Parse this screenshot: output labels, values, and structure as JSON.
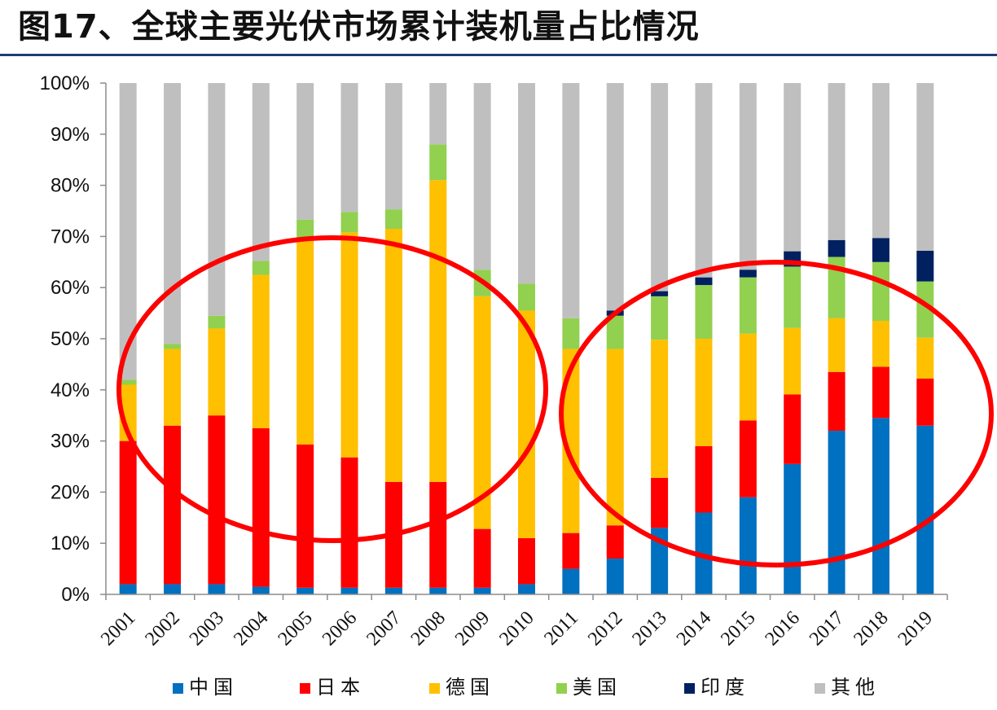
{
  "title": "图17、全球主要光伏市场累计装机量占比情况",
  "chart_data": {
    "type": "bar",
    "stacked": true,
    "percent_stacked": true,
    "categories": [
      "2001",
      "2002",
      "2003",
      "2004",
      "2005",
      "2006",
      "2007",
      "2008",
      "2009",
      "2010",
      "2011",
      "2012",
      "2013",
      "2014",
      "2015",
      "2016",
      "2017",
      "2018",
      "2019"
    ],
    "series": [
      {
        "name": "中国",
        "color": "#0070c0",
        "values": [
          2,
          2,
          2,
          1.5,
          1.3,
          1.3,
          1.3,
          1.3,
          1.3,
          2,
          5,
          7,
          13,
          16,
          19,
          25.5,
          32,
          34.5,
          33
        ]
      },
      {
        "name": "日本",
        "color": "#ff0000",
        "values": [
          28,
          31,
          33,
          31,
          28,
          25.5,
          20.7,
          20.7,
          11.5,
          9,
          7,
          6.5,
          9.8,
          13,
          15,
          13.6,
          11.5,
          10,
          9.2
        ]
      },
      {
        "name": "德国",
        "color": "#ffc000",
        "values": [
          11,
          15,
          17,
          30,
          40.5,
          44,
          49.5,
          59,
          45.5,
          44.5,
          36,
          34.5,
          27,
          21,
          17,
          13,
          10.5,
          9,
          8
        ]
      },
      {
        "name": "美国",
        "color": "#92d050",
        "values": [
          1,
          1,
          2.5,
          2.7,
          3.5,
          4,
          3.8,
          7,
          5.2,
          5.3,
          6,
          6.5,
          8.5,
          10.5,
          11,
          12,
          12,
          11.5,
          11
        ]
      },
      {
        "name": "印度",
        "color": "#002060",
        "values": [
          0,
          0,
          0,
          0,
          0,
          0,
          0,
          0,
          0,
          0,
          0,
          1,
          1,
          1.5,
          1.5,
          3,
          3.3,
          4.7,
          6
        ]
      },
      {
        "name": "其他",
        "color": "#bfbfbf",
        "values": [
          58,
          51,
          45.5,
          34.8,
          26.7,
          25.2,
          24.7,
          12,
          36.5,
          39.2,
          46,
          44.5,
          40.7,
          38,
          36.5,
          32.9,
          30.7,
          30.3,
          32.8
        ]
      }
    ],
    "xlabel": "",
    "ylabel": "",
    "ylim": [
      0,
      100
    ],
    "y_ticks": [
      "0%",
      "10%",
      "20%",
      "30%",
      "40%",
      "50%",
      "60%",
      "70%",
      "80%",
      "90%",
      "100%"
    ],
    "legend_position": "bottom",
    "grid": false,
    "annotations": [
      {
        "shape": "ellipse",
        "color": "#ff0000",
        "covers_categories": [
          "2001",
          "2010"
        ]
      },
      {
        "shape": "ellipse",
        "color": "#ff0000",
        "covers_categories": [
          "2011",
          "2019"
        ]
      }
    ]
  }
}
